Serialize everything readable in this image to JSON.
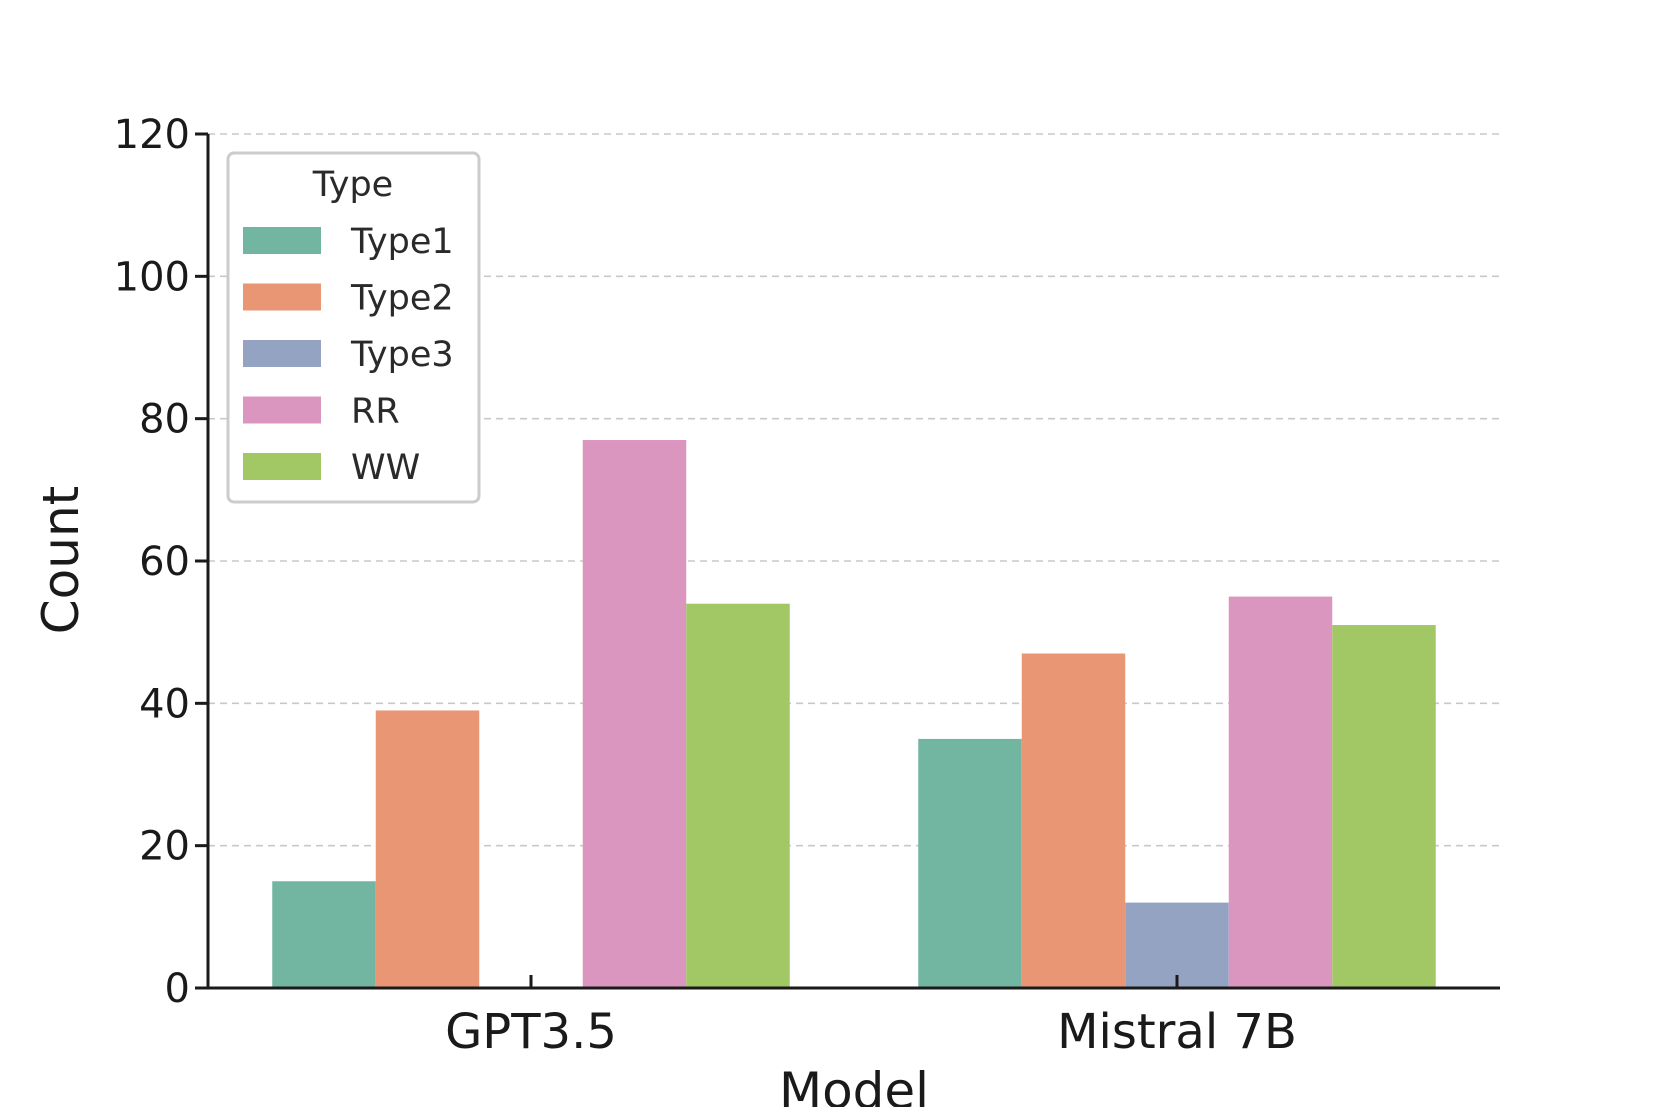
{
  "chart_data": {
    "type": "bar",
    "title": "",
    "xlabel": "Model",
    "ylabel": "Count",
    "categories": [
      "GPT3.5",
      "Mistral 7B"
    ],
    "series": [
      {
        "name": "Type1",
        "color": "#72b6a1",
        "values": [
          15,
          35
        ]
      },
      {
        "name": "Type2",
        "color": "#e99675",
        "values": [
          39,
          47
        ]
      },
      {
        "name": "Type3",
        "color": "#95a3c3",
        "values": [
          0,
          12
        ]
      },
      {
        "name": "RR",
        "color": "#db96c0",
        "values": [
          77,
          55
        ]
      },
      {
        "name": "WW",
        "color": "#a2c865",
        "values": [
          54,
          51
        ]
      }
    ],
    "ylim": [
      0,
      120
    ],
    "yticks": [
      0,
      20,
      40,
      60,
      80,
      100,
      120
    ],
    "grid": "y-dashed",
    "legend": {
      "title": "Type",
      "position": "top-left"
    }
  }
}
